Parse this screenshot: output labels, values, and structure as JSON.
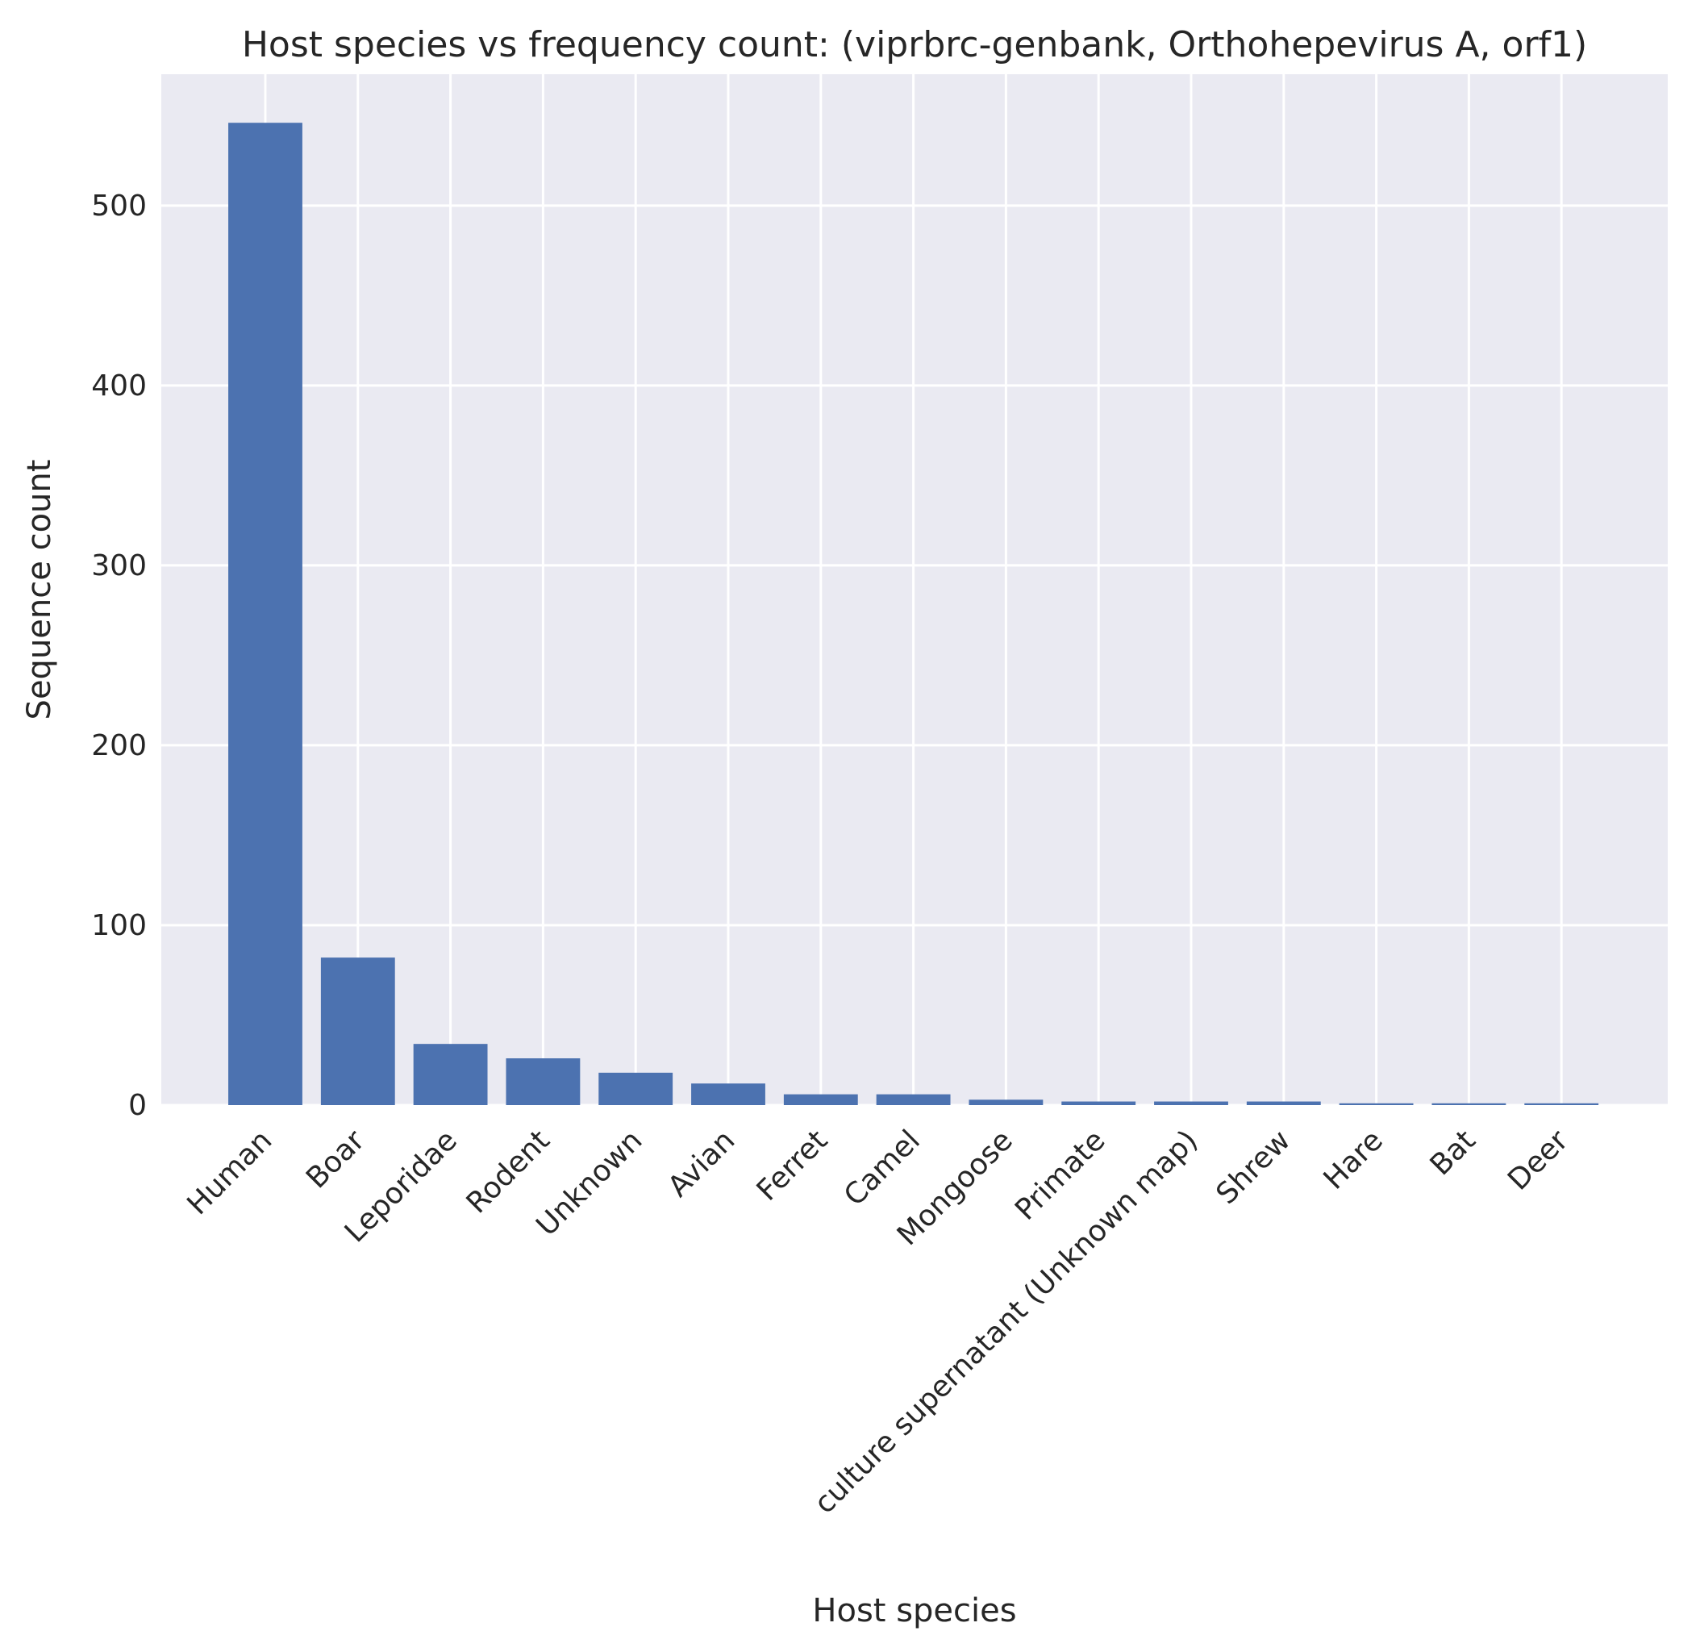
{
  "chart_data": {
    "type": "bar",
    "title": "Host species vs frequency count: (viprbrc-genbank, Orthohepevirus A, orf1)",
    "xlabel": "Host species",
    "ylabel": "Sequence count",
    "categories": [
      "Human",
      "Boar",
      "Leporidae",
      "Rodent",
      "Unknown",
      "Avian",
      "Ferret",
      "Camel",
      "Mongoose",
      "Primate",
      "culture supernatant (Unknown map)",
      "Shrew",
      "Hare",
      "Bat",
      "Deer"
    ],
    "values": [
      546,
      82,
      34,
      26,
      18,
      12,
      6,
      6,
      3,
      2,
      2,
      2,
      1,
      1,
      1
    ],
    "ylim": [
      0,
      573
    ],
    "yticks": [
      0,
      100,
      200,
      300,
      400,
      500
    ],
    "grid": true,
    "bar_color": "#4c72b0",
    "background_color": "#eaeaf2",
    "grid_color": "#ffffff"
  }
}
